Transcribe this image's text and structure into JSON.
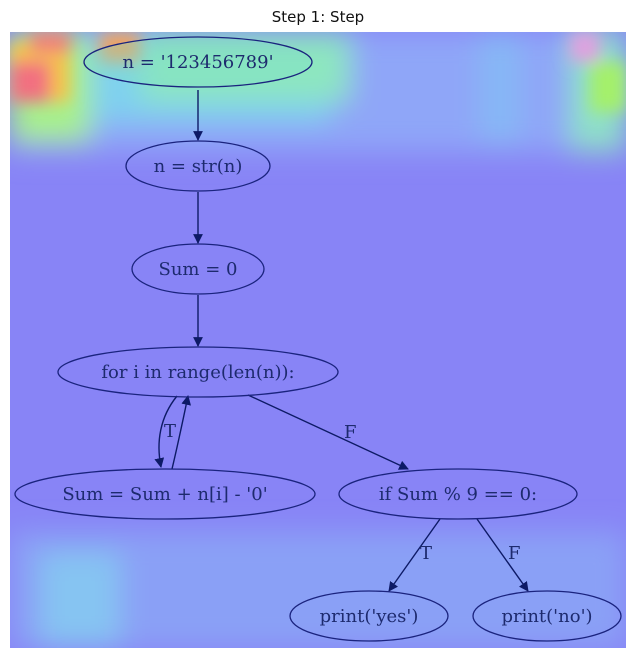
{
  "title": "Step 1: Step",
  "colors": {
    "heatmap_base": "#8a86f7",
    "node_stroke": "#1a237e",
    "edge_stroke": "#0d1a66",
    "text": "#1d2a6e"
  },
  "flowchart": {
    "nodes": [
      {
        "id": "n1",
        "label": "n = '123456789'"
      },
      {
        "id": "n2",
        "label": "n = str(n)"
      },
      {
        "id": "n3",
        "label": "Sum = 0"
      },
      {
        "id": "n4",
        "label": "for i in range(len(n)):"
      },
      {
        "id": "n5",
        "label": "Sum = Sum + n[i] - '0'"
      },
      {
        "id": "n6",
        "label": "if Sum % 9 == 0:"
      },
      {
        "id": "n7",
        "label": "print('yes')"
      },
      {
        "id": "n8",
        "label": "print('no')"
      }
    ],
    "edges": [
      {
        "from": "n1",
        "to": "n2",
        "label": ""
      },
      {
        "from": "n2",
        "to": "n3",
        "label": ""
      },
      {
        "from": "n3",
        "to": "n4",
        "label": ""
      },
      {
        "from": "n4",
        "to": "n5",
        "label": "T"
      },
      {
        "from": "n5",
        "to": "n4",
        "label": ""
      },
      {
        "from": "n4",
        "to": "n6",
        "label": "F"
      },
      {
        "from": "n6",
        "to": "n7",
        "label": "T"
      },
      {
        "from": "n6",
        "to": "n8",
        "label": "F"
      }
    ]
  }
}
